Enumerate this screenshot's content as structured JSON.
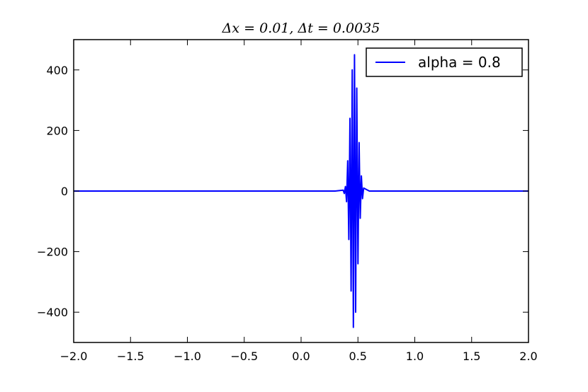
{
  "chart_data": {
    "type": "line",
    "title": "Δx = 0.01, Δt = 0.0035",
    "xlabel": "",
    "ylabel": "",
    "xlim": [
      -2.0,
      2.0
    ],
    "ylim": [
      -500,
      500
    ],
    "x_ticks": [
      "−2.0",
      "−1.5",
      "−1.0",
      "−0.5",
      "0.0",
      "0.5",
      "1.0",
      "1.5",
      "2.0"
    ],
    "y_ticks": [
      "−400",
      "−200",
      "0",
      "200",
      "400"
    ],
    "x_tick_values": [
      -2.0,
      -1.5,
      -1.0,
      -0.5,
      0.0,
      0.5,
      1.0,
      1.5,
      2.0
    ],
    "y_tick_values": [
      -400,
      -200,
      0,
      200,
      400
    ],
    "grid": false,
    "legend_position": "top-right",
    "series": [
      {
        "name": "alpha = 0.8",
        "color": "#0000ff",
        "x": [
          -2.0,
          0.3,
          0.37,
          0.38,
          0.39,
          0.4,
          0.41,
          0.42,
          0.43,
          0.44,
          0.45,
          0.46,
          0.47,
          0.48,
          0.49,
          0.5,
          0.51,
          0.52,
          0.53,
          0.54,
          0.55,
          0.6,
          2.0
        ],
        "y": [
          0,
          0,
          3,
          -8,
          15,
          -35,
          100,
          -160,
          240,
          -330,
          400,
          -450,
          450,
          -400,
          340,
          -240,
          160,
          -90,
          50,
          -25,
          10,
          0,
          0
        ]
      }
    ]
  }
}
